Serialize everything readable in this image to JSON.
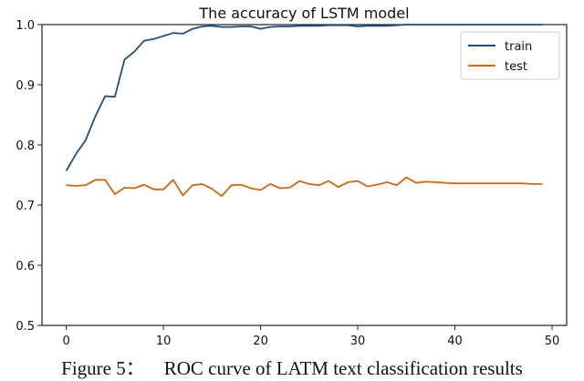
{
  "chart_data": {
    "type": "line",
    "title": "The accuracy of LSTM model",
    "xlabel": "",
    "ylabel": "",
    "xlim": [
      -2.5,
      51.5
    ],
    "ylim": [
      0.5,
      1.0
    ],
    "x_ticks": [
      "0",
      "10",
      "20",
      "30",
      "40",
      "50"
    ],
    "y_ticks": [
      "0.5",
      "0.6",
      "0.7",
      "0.8",
      "0.9",
      "1.0"
    ],
    "grid": false,
    "legend_position": "top-right",
    "series": [
      {
        "name": "train",
        "color": "#1f4e79",
        "x": [
          0,
          1,
          2,
          3,
          4,
          5,
          6,
          7,
          8,
          9,
          10,
          11,
          12,
          13,
          14,
          15,
          16,
          17,
          18,
          19,
          20,
          21,
          22,
          23,
          24,
          25,
          26,
          27,
          28,
          29,
          30,
          31,
          32,
          33,
          34,
          35,
          36,
          37,
          38,
          39,
          40,
          41,
          42,
          43,
          44,
          45,
          46,
          47,
          48,
          49
        ],
        "values": [
          0.757,
          0.785,
          0.808,
          0.848,
          0.881,
          0.88,
          0.942,
          0.955,
          0.973,
          0.976,
          0.981,
          0.986,
          0.985,
          0.993,
          0.997,
          0.998,
          0.996,
          0.996,
          0.997,
          0.997,
          0.993,
          0.996,
          0.997,
          0.997,
          0.998,
          0.998,
          0.998,
          0.999,
          0.999,
          0.999,
          0.997,
          0.998,
          0.998,
          0.998,
          0.999,
          1.0,
          1.0,
          1.0,
          1.0,
          1.0,
          1.0,
          1.0,
          1.0,
          1.0,
          1.0,
          1.0,
          1.0,
          1.0,
          1.0,
          1.0
        ]
      },
      {
        "name": "test",
        "color": "#c96a13",
        "x": [
          0,
          1,
          2,
          3,
          4,
          5,
          6,
          7,
          8,
          9,
          10,
          11,
          12,
          13,
          14,
          15,
          16,
          17,
          18,
          19,
          20,
          21,
          22,
          23,
          24,
          25,
          26,
          27,
          28,
          29,
          30,
          31,
          32,
          33,
          34,
          35,
          36,
          37,
          38,
          39,
          40,
          41,
          42,
          43,
          44,
          45,
          46,
          47,
          48,
          49
        ],
        "values": [
          0.733,
          0.732,
          0.733,
          0.742,
          0.742,
          0.718,
          0.729,
          0.728,
          0.734,
          0.726,
          0.726,
          0.742,
          0.716,
          0.733,
          0.735,
          0.727,
          0.715,
          0.733,
          0.734,
          0.728,
          0.725,
          0.735,
          0.728,
          0.729,
          0.74,
          0.735,
          0.733,
          0.74,
          0.73,
          0.738,
          0.74,
          0.731,
          0.734,
          0.738,
          0.733,
          0.746,
          0.737,
          0.739,
          0.738,
          0.737,
          0.736,
          0.736,
          0.736,
          0.736,
          0.736,
          0.736,
          0.736,
          0.736,
          0.735,
          0.735
        ]
      }
    ]
  },
  "caption": {
    "label": "Figure 5：",
    "text": "ROC curve of LATM text classification results"
  }
}
